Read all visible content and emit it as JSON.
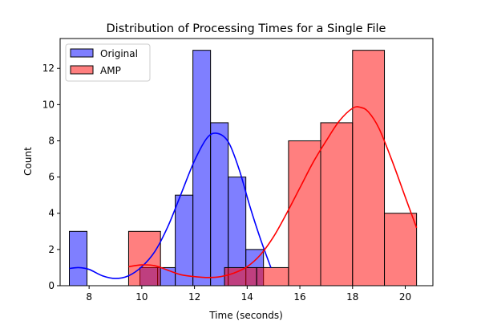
{
  "chart_data": {
    "type": "bar",
    "subtype": "histogram-with-kde",
    "title": "Distribution of Processing Times for a Single File",
    "xlabel": "Time (seconds)",
    "ylabel": "Count",
    "xlim": [
      6.9,
      21.05
    ],
    "ylim": [
      0,
      13.65
    ],
    "xticks": [
      8,
      10,
      12,
      14,
      16,
      18,
      20
    ],
    "yticks": [
      0,
      2,
      4,
      6,
      8,
      10,
      12
    ],
    "grid": false,
    "legend_position": "top-left",
    "series": [
      {
        "name": "Original",
        "color": "#0000ff",
        "bins": [
          {
            "x0": 7.25,
            "x1": 7.92,
            "count": 3
          },
          {
            "x0": 7.92,
            "x1": 8.59,
            "count": 0
          },
          {
            "x0": 8.59,
            "x1": 9.26,
            "count": 0
          },
          {
            "x0": 9.26,
            "x1": 9.93,
            "count": 0
          },
          {
            "x0": 9.93,
            "x1": 10.6,
            "count": 1
          },
          {
            "x0": 10.6,
            "x1": 11.27,
            "count": 1
          },
          {
            "x0": 11.27,
            "x1": 11.94,
            "count": 5
          },
          {
            "x0": 11.94,
            "x1": 12.61,
            "count": 13
          },
          {
            "x0": 12.61,
            "x1": 13.28,
            "count": 9
          },
          {
            "x0": 13.28,
            "x1": 13.95,
            "count": 6
          },
          {
            "x0": 13.95,
            "x1": 14.62,
            "count": 2
          }
        ],
        "kde": [
          [
            7.25,
            0.95
          ],
          [
            7.6,
            1.0
          ],
          [
            8.0,
            0.9
          ],
          [
            8.5,
            0.55
          ],
          [
            9.0,
            0.4
          ],
          [
            9.5,
            0.55
          ],
          [
            10.0,
            1.05
          ],
          [
            10.5,
            1.9
          ],
          [
            11.0,
            3.3
          ],
          [
            11.5,
            5.1
          ],
          [
            12.0,
            6.9
          ],
          [
            12.5,
            8.2
          ],
          [
            12.9,
            8.4
          ],
          [
            13.3,
            7.9
          ],
          [
            13.7,
            6.4
          ],
          [
            14.1,
            4.4
          ],
          [
            14.5,
            2.6
          ],
          [
            14.9,
            1.0
          ]
        ]
      },
      {
        "name": "AMP",
        "color": "#ff0000",
        "bins": [
          {
            "x0": 9.5,
            "x1": 10.71,
            "count": 3
          },
          {
            "x0": 10.71,
            "x1": 11.93,
            "count": 0
          },
          {
            "x0": 11.93,
            "x1": 13.14,
            "count": 0
          },
          {
            "x0": 13.14,
            "x1": 14.36,
            "count": 1
          },
          {
            "x0": 14.36,
            "x1": 15.57,
            "count": 1
          },
          {
            "x0": 15.57,
            "x1": 16.79,
            "count": 8
          },
          {
            "x0": 16.79,
            "x1": 18.0,
            "count": 9
          },
          {
            "x0": 18.0,
            "x1": 19.21,
            "count": 13
          },
          {
            "x0": 19.21,
            "x1": 20.43,
            "count": 4
          }
        ],
        "kde": [
          [
            9.5,
            1.05
          ],
          [
            10.0,
            1.15
          ],
          [
            10.5,
            1.1
          ],
          [
            11.0,
            0.85
          ],
          [
            11.5,
            0.6
          ],
          [
            12.0,
            0.5
          ],
          [
            12.5,
            0.45
          ],
          [
            13.0,
            0.5
          ],
          [
            13.5,
            0.7
          ],
          [
            14.0,
            1.05
          ],
          [
            14.5,
            1.7
          ],
          [
            15.0,
            2.7
          ],
          [
            15.5,
            4.0
          ],
          [
            16.0,
            5.4
          ],
          [
            16.5,
            6.8
          ],
          [
            17.0,
            8.0
          ],
          [
            17.5,
            9.1
          ],
          [
            18.0,
            9.8
          ],
          [
            18.3,
            9.85
          ],
          [
            18.6,
            9.6
          ],
          [
            19.0,
            8.7
          ],
          [
            19.5,
            6.9
          ],
          [
            20.0,
            4.9
          ],
          [
            20.43,
            3.2
          ]
        ]
      }
    ]
  }
}
